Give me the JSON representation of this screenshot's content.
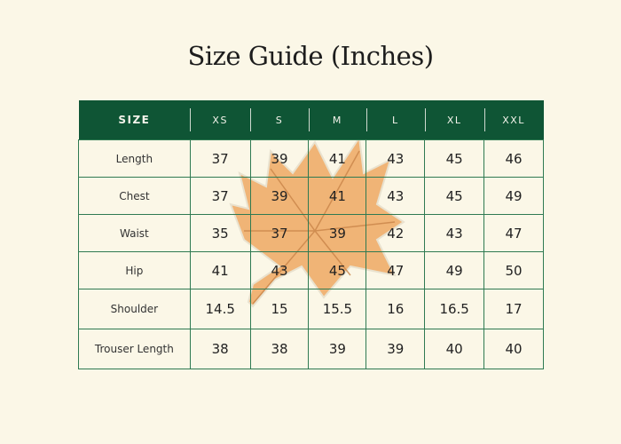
{
  "title": "Size Guide (Inches)",
  "accent_color": "#0f5535",
  "background_color": "#fbf7e7",
  "decoration": "maple-leaf-watermark",
  "table": {
    "headers": [
      "SIZE",
      "XS",
      "S",
      "M",
      "L",
      "XL",
      "XXL"
    ],
    "rows": [
      {
        "label": "Length",
        "values": [
          "37",
          "39",
          "41",
          "43",
          "45",
          "46"
        ]
      },
      {
        "label": "Chest",
        "values": [
          "37",
          "39",
          "41",
          "43",
          "45",
          "49"
        ]
      },
      {
        "label": "Waist",
        "values": [
          "35",
          "37",
          "39",
          "42",
          "43",
          "47"
        ]
      },
      {
        "label": "Hip",
        "values": [
          "41",
          "43",
          "45",
          "47",
          "49",
          "50"
        ]
      },
      {
        "label": "Shoulder",
        "values": [
          "14.5",
          "15",
          "15.5",
          "16",
          "16.5",
          "17"
        ]
      },
      {
        "label": "Trouser Length",
        "values": [
          "38",
          "38",
          "39",
          "39",
          "40",
          "40"
        ]
      }
    ]
  }
}
